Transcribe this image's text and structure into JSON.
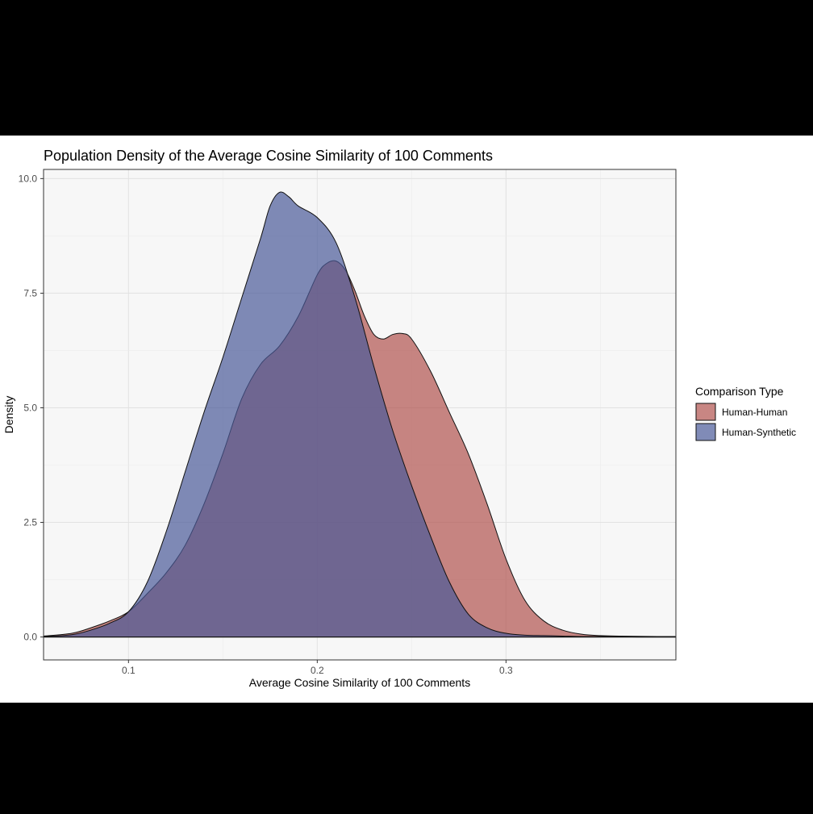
{
  "chart_data": {
    "type": "area",
    "title": "Population Density of the Average Cosine Similarity of 100 Comments",
    "xlabel": "Average Cosine Similarity of 100 Comments",
    "ylabel": "Density",
    "xlim": [
      0.055,
      0.39
    ],
    "ylim": [
      -0.5,
      10.2
    ],
    "x_ticks": [
      0.1,
      0.2,
      0.3
    ],
    "x_tick_labels": [
      "0.1",
      "0.2",
      "0.3"
    ],
    "y_ticks": [
      0,
      2.5,
      5,
      7.5,
      10
    ],
    "y_tick_labels": [
      "0.0",
      "2.5",
      "5.0",
      "7.5",
      "10.0"
    ],
    "grid": true,
    "legend_position": "right",
    "legend_title": "Comparison Type",
    "series": [
      {
        "name": "Human-Human",
        "color": "#b0524f",
        "x": [
          0.055,
          0.07,
          0.08,
          0.09,
          0.1,
          0.11,
          0.12,
          0.13,
          0.14,
          0.15,
          0.16,
          0.17,
          0.18,
          0.19,
          0.2,
          0.205,
          0.21,
          0.215,
          0.22,
          0.225,
          0.23,
          0.235,
          0.24,
          0.245,
          0.25,
          0.26,
          0.27,
          0.28,
          0.29,
          0.3,
          0.31,
          0.32,
          0.33,
          0.34,
          0.35,
          0.36,
          0.38,
          0.39
        ],
        "y": [
          0.02,
          0.08,
          0.2,
          0.35,
          0.55,
          0.95,
          1.4,
          2.0,
          2.9,
          4.0,
          5.2,
          5.95,
          6.35,
          7.0,
          7.9,
          8.15,
          8.2,
          8.0,
          7.55,
          7.0,
          6.6,
          6.5,
          6.6,
          6.62,
          6.5,
          5.8,
          4.9,
          4.0,
          2.9,
          1.7,
          0.8,
          0.35,
          0.15,
          0.06,
          0.03,
          0.02,
          0.01,
          0.01
        ]
      },
      {
        "name": "Human-Synthetic",
        "color": "#4a5a98",
        "x": [
          0.055,
          0.07,
          0.08,
          0.09,
          0.1,
          0.11,
          0.12,
          0.13,
          0.14,
          0.15,
          0.16,
          0.17,
          0.175,
          0.18,
          0.185,
          0.19,
          0.2,
          0.21,
          0.22,
          0.23,
          0.24,
          0.25,
          0.26,
          0.27,
          0.28,
          0.29,
          0.3,
          0.31,
          0.32,
          0.33,
          0.34,
          0.35,
          0.37,
          0.39
        ],
        "y": [
          0.01,
          0.05,
          0.15,
          0.3,
          0.55,
          1.2,
          2.3,
          3.6,
          4.9,
          6.1,
          7.4,
          8.7,
          9.4,
          9.7,
          9.6,
          9.4,
          9.15,
          8.6,
          7.4,
          5.9,
          4.5,
          3.3,
          2.2,
          1.2,
          0.5,
          0.2,
          0.08,
          0.04,
          0.03,
          0.02,
          0.01,
          0.01,
          0.0,
          0.0
        ]
      }
    ]
  }
}
